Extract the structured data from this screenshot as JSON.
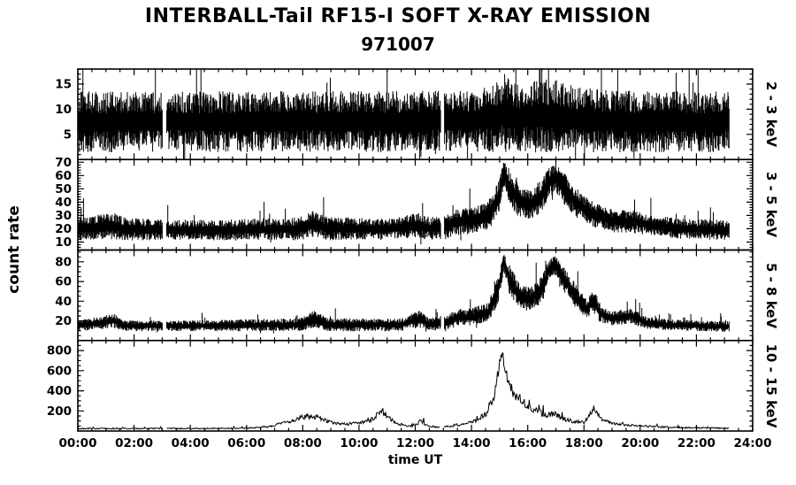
{
  "title": "INTERBALL-Tail RF15-I SOFT X-RAY EMISSION",
  "subtitle": "971007",
  "ylabel": "count rate",
  "xlabel": "time UT",
  "colors": {
    "trace": "#000000",
    "frame": "#000000",
    "background": "#ffffff"
  },
  "chart_data": {
    "type": "line",
    "title": "INTERBALL-Tail RF15-I SOFT X-RAY EMISSION",
    "subtitle": "971007",
    "xlabel": "time UT",
    "ylabel": "count rate",
    "x_range": [
      0,
      24
    ],
    "x_major_tick_hours": 2,
    "x_minor_tick_hours": 0.5,
    "x_tick_labels": [
      "00:00",
      "02:00",
      "04:00",
      "06:00",
      "08:00",
      "10:00",
      "12:00",
      "14:00",
      "16:00",
      "18:00",
      "20:00",
      "22:00",
      "24:00"
    ],
    "data_end_hour": 23.17,
    "gaps_hours": [
      [
        3.02,
        3.15
      ],
      [
        12.9,
        13.02
      ]
    ],
    "panels": [
      {
        "label": "2 - 3 keV",
        "ylim": [
          0,
          18
        ],
        "yticks": [
          5,
          10,
          15
        ],
        "y_minor_step": 1,
        "style": "band",
        "envelope": [
          [
            0,
            7.5,
            5.5
          ],
          [
            13.8,
            7.6,
            5.5
          ],
          [
            14.8,
            8.2,
            6.2
          ],
          [
            15.2,
            9.2,
            7.2
          ],
          [
            15.6,
            8.2,
            6.2
          ],
          [
            16.4,
            8.6,
            6.6
          ],
          [
            17.0,
            8.8,
            6.8
          ],
          [
            17.4,
            8.2,
            6.2
          ],
          [
            18.2,
            7.8,
            5.8
          ],
          [
            20.0,
            7.5,
            5.5
          ],
          [
            23.2,
            7.5,
            5.5
          ]
        ]
      },
      {
        "label": "3 - 5 keV",
        "ylim": [
          4,
          72
        ],
        "yticks": [
          10,
          20,
          30,
          40,
          50,
          60,
          70
        ],
        "y_minor_step": 2,
        "style": "band",
        "envelope": [
          [
            0,
            20,
            8
          ],
          [
            1.3,
            22,
            9
          ],
          [
            1.6,
            20,
            8
          ],
          [
            3,
            19,
            7
          ],
          [
            5,
            19,
            7
          ],
          [
            7.9,
            20,
            8
          ],
          [
            8.4,
            24,
            9
          ],
          [
            8.9,
            20,
            8
          ],
          [
            11,
            20,
            7
          ],
          [
            12.1,
            23,
            9
          ],
          [
            12.5,
            20,
            8
          ],
          [
            13.1,
            21,
            8
          ],
          [
            13.4,
            25,
            9
          ],
          [
            14,
            26,
            9
          ],
          [
            14.6,
            30,
            10
          ],
          [
            14.95,
            42,
            12
          ],
          [
            15.15,
            62,
            9
          ],
          [
            15.35,
            52,
            12
          ],
          [
            15.7,
            40,
            11
          ],
          [
            16.1,
            38,
            10
          ],
          [
            16.5,
            45,
            12
          ],
          [
            16.8,
            56,
            11
          ],
          [
            17.0,
            58,
            10
          ],
          [
            17.3,
            50,
            11
          ],
          [
            17.7,
            40,
            10
          ],
          [
            18.2,
            32,
            9
          ],
          [
            19,
            26,
            8
          ],
          [
            19.8,
            25,
            8
          ],
          [
            20.6,
            22,
            7
          ],
          [
            21.5,
            20,
            7
          ],
          [
            23.2,
            19,
            7
          ]
        ]
      },
      {
        "label": "5 - 8 keV",
        "ylim": [
          0,
          92
        ],
        "yticks": [
          20,
          40,
          60,
          80
        ],
        "y_minor_step": 5,
        "style": "band",
        "envelope": [
          [
            0,
            15,
            5
          ],
          [
            1.3,
            20,
            7
          ],
          [
            1.6,
            15,
            5
          ],
          [
            4,
            15,
            5
          ],
          [
            7.9,
            16,
            6
          ],
          [
            8.4,
            22,
            8
          ],
          [
            8.9,
            16,
            6
          ],
          [
            11.5,
            16,
            6
          ],
          [
            12.15,
            22,
            8
          ],
          [
            12.5,
            16,
            6
          ],
          [
            13.2,
            19,
            7
          ],
          [
            13.45,
            23,
            8
          ],
          [
            14,
            24,
            8
          ],
          [
            14.6,
            29,
            9
          ],
          [
            14.95,
            52,
            14
          ],
          [
            15.15,
            80,
            9
          ],
          [
            15.35,
            62,
            14
          ],
          [
            15.7,
            45,
            12
          ],
          [
            16.1,
            42,
            11
          ],
          [
            16.5,
            52,
            13
          ],
          [
            16.8,
            74,
            10
          ],
          [
            17.0,
            76,
            9
          ],
          [
            17.3,
            62,
            12
          ],
          [
            17.7,
            45,
            11
          ],
          [
            18.1,
            32,
            9
          ],
          [
            18.38,
            42,
            10
          ],
          [
            18.55,
            28,
            8
          ],
          [
            19,
            22,
            7
          ],
          [
            19.7,
            25,
            7
          ],
          [
            20.2,
            18,
            6
          ],
          [
            21,
            16,
            5
          ],
          [
            23.2,
            14,
            5
          ]
        ]
      },
      {
        "label": "10 - 15 keV",
        "ylim": [
          0,
          900
        ],
        "yticks": [
          200,
          400,
          600,
          800
        ],
        "y_minor_step": 50,
        "style": "line",
        "envelope": [
          [
            0,
            25,
            12
          ],
          [
            4,
            25,
            12
          ],
          [
            6,
            28,
            12
          ],
          [
            6.8,
            45,
            20
          ],
          [
            7.2,
            70,
            30
          ],
          [
            7.6,
            100,
            40
          ],
          [
            8.0,
            140,
            50
          ],
          [
            8.35,
            150,
            55
          ],
          [
            8.7,
            115,
            45
          ],
          [
            9.1,
            75,
            30
          ],
          [
            9.6,
            70,
            28
          ],
          [
            10.1,
            85,
            35
          ],
          [
            10.5,
            120,
            45
          ],
          [
            10.8,
            210,
            70
          ],
          [
            11.0,
            150,
            55
          ],
          [
            11.3,
            75,
            30
          ],
          [
            11.8,
            45,
            18
          ],
          [
            12.2,
            95,
            45
          ],
          [
            12.5,
            45,
            18
          ],
          [
            13.0,
            40,
            18
          ],
          [
            13.6,
            65,
            28
          ],
          [
            14.1,
            95,
            40
          ],
          [
            14.5,
            170,
            70
          ],
          [
            14.8,
            330,
            110
          ],
          [
            15.0,
            700,
            150
          ],
          [
            15.1,
            770,
            90
          ],
          [
            15.3,
            480,
            140
          ],
          [
            15.55,
            360,
            110
          ],
          [
            15.8,
            300,
            90
          ],
          [
            16.1,
            230,
            80
          ],
          [
            16.4,
            185,
            65
          ],
          [
            16.7,
            155,
            55
          ],
          [
            16.95,
            175,
            60
          ],
          [
            17.25,
            120,
            45
          ],
          [
            17.6,
            95,
            35
          ],
          [
            18.0,
            85,
            32
          ],
          [
            18.35,
            230,
            70
          ],
          [
            18.6,
            120,
            45
          ],
          [
            19.0,
            75,
            28
          ],
          [
            19.5,
            62,
            24
          ],
          [
            20.0,
            52,
            20
          ],
          [
            20.8,
            40,
            16
          ],
          [
            21.6,
            33,
            14
          ],
          [
            22.5,
            30,
            12
          ],
          [
            23.2,
            28,
            12
          ]
        ]
      }
    ]
  }
}
